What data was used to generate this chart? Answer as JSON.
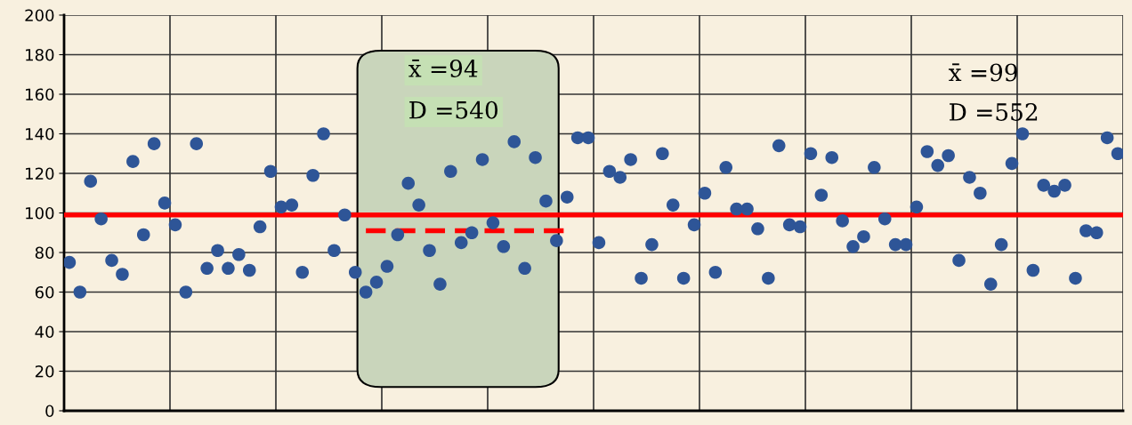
{
  "chart_data": {
    "type": "scatter",
    "categories": [
      null,
      null,
      null,
      null,
      null,
      null,
      null,
      null,
      null,
      null,
      null,
      null,
      null,
      null,
      null,
      null,
      null,
      null,
      null,
      null,
      null,
      null,
      null,
      null,
      null,
      null,
      null,
      null,
      null,
      null,
      null,
      null,
      null,
      null,
      null,
      null,
      null,
      null,
      null,
      null,
      null,
      null,
      null,
      null,
      null,
      null,
      null,
      null,
      null,
      null,
      null,
      null,
      null,
      null,
      null,
      null,
      null,
      null,
      null,
      null,
      null,
      null,
      null,
      null,
      null,
      null,
      null,
      null,
      null,
      null,
      null,
      null,
      null,
      null,
      null,
      null,
      null,
      null,
      null,
      null,
      null,
      null,
      null,
      null,
      null,
      null,
      null,
      null,
      null,
      null,
      null,
      null,
      null,
      null,
      null,
      null,
      null,
      null,
      null,
      null
    ],
    "series": [
      {
        "color": "#2e5597",
        "marker": "circle",
        "values": [
          75,
          60,
          116,
          97,
          76,
          69,
          126,
          89,
          135,
          105,
          94,
          60,
          135,
          72,
          81,
          72,
          79,
          71,
          93,
          121,
          103,
          104,
          70,
          119,
          140,
          81,
          99,
          70,
          60,
          65,
          73,
          89,
          115,
          104,
          81,
          64,
          121,
          85,
          90,
          127,
          95,
          83,
          136,
          72,
          128,
          106,
          86,
          108,
          138,
          138,
          85,
          121,
          118,
          127,
          67,
          84,
          130,
          104,
          67,
          94,
          110,
          70,
          123,
          102,
          102,
          92,
          67,
          134,
          94,
          93,
          130,
          109,
          128,
          96,
          83,
          88,
          123,
          97,
          84,
          84,
          103,
          131,
          124,
          129,
          76,
          118,
          110,
          64,
          84,
          125,
          140,
          71,
          114,
          111,
          114,
          67,
          91,
          90,
          138,
          130
        ]
      },
      {
        "type": "line",
        "color": "#ff0000",
        "line_style": "dashed",
        "marker": "none",
        "values": [
          null,
          null,
          null,
          null,
          null,
          null,
          null,
          null,
          null,
          null,
          null,
          null,
          null,
          null,
          null,
          null,
          null,
          null,
          null,
          null,
          null,
          null,
          null,
          null,
          null,
          null,
          null,
          null,
          91,
          91,
          91,
          91,
          91,
          91,
          91,
          91,
          91,
          91,
          91,
          91,
          91,
          91,
          91,
          91,
          91,
          91,
          91,
          91,
          null,
          null,
          null,
          null,
          null,
          null,
          null,
          null,
          null,
          null,
          null,
          null,
          null,
          null,
          null,
          null,
          null,
          null,
          null,
          null,
          null,
          null,
          null,
          null,
          null,
          null,
          null,
          null,
          null,
          null,
          null,
          null,
          null,
          null,
          null,
          null,
          null,
          null,
          null,
          null,
          null,
          null,
          null,
          null,
          null,
          null,
          null,
          null,
          null,
          null,
          null,
          null
        ]
      }
    ],
    "ylim": [
      0,
      200
    ],
    "yticks": [
      0,
      20,
      40,
      60,
      80,
      100,
      120,
      140,
      160,
      180,
      200
    ],
    "tick_labels": "y",
    "grid": true,
    "ref_lines": [
      {
        "axis": "y",
        "value": 99,
        "color": "#ff0000",
        "line_style": "solid"
      }
    ],
    "annotations": [
      "x̄ =94",
      "D =540",
      "x̄ =99",
      "D =552"
    ]
  }
}
